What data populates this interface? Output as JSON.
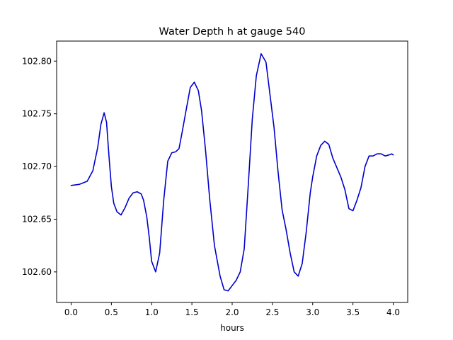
{
  "chart_data": {
    "type": "line",
    "title": "Water Depth h at gauge 540",
    "xlabel": "hours",
    "ylabel": "",
    "xlim": [
      -0.18,
      4.18
    ],
    "ylim": [
      102.571,
      102.819
    ],
    "xticks": [
      0.0,
      0.5,
      1.0,
      1.5,
      2.0,
      2.5,
      3.0,
      3.5,
      4.0
    ],
    "xtick_labels": [
      "0.0",
      "0.5",
      "1.0",
      "1.5",
      "2.0",
      "2.5",
      "3.0",
      "3.5",
      "4.0"
    ],
    "yticks": [
      102.6,
      102.65,
      102.7,
      102.75,
      102.8
    ],
    "ytick_labels": [
      "102.60",
      "102.65",
      "102.70",
      "102.75",
      "102.80"
    ],
    "grid": false,
    "series": [
      {
        "name": "",
        "color": "#0000cc",
        "x": [
          0.0,
          0.1,
          0.2,
          0.27,
          0.33,
          0.37,
          0.41,
          0.44,
          0.47,
          0.5,
          0.53,
          0.57,
          0.62,
          0.67,
          0.72,
          0.77,
          0.82,
          0.87,
          0.9,
          0.94,
          0.97,
          1.0,
          1.05,
          1.1,
          1.15,
          1.2,
          1.25,
          1.3,
          1.34,
          1.38,
          1.42,
          1.48,
          1.53,
          1.58,
          1.62,
          1.67,
          1.72,
          1.78,
          1.85,
          1.9,
          1.95,
          2.0,
          2.05,
          2.1,
          2.15,
          2.2,
          2.25,
          2.3,
          2.36,
          2.42,
          2.47,
          2.52,
          2.57,
          2.62,
          2.67,
          2.72,
          2.77,
          2.82,
          2.87,
          2.92,
          2.97,
          3.0,
          3.05,
          3.1,
          3.15,
          3.2,
          3.25,
          3.3,
          3.35,
          3.4,
          3.45,
          3.5,
          3.55,
          3.6,
          3.65,
          3.7,
          3.75,
          3.8,
          3.85,
          3.9,
          3.95,
          3.98,
          4.0
        ],
        "y": [
          102.682,
          102.683,
          102.686,
          102.696,
          102.718,
          102.74,
          102.751,
          102.742,
          102.71,
          102.681,
          102.665,
          102.657,
          102.654,
          102.661,
          102.67,
          102.675,
          102.676,
          102.674,
          102.668,
          102.652,
          102.633,
          102.61,
          102.6,
          102.618,
          102.668,
          102.705,
          102.713,
          102.714,
          102.717,
          102.733,
          102.75,
          102.775,
          102.78,
          102.772,
          102.753,
          102.715,
          102.67,
          102.625,
          102.596,
          102.583,
          102.582,
          102.587,
          102.592,
          102.6,
          102.622,
          102.682,
          102.745,
          102.786,
          102.807,
          102.799,
          102.768,
          102.737,
          102.695,
          102.659,
          102.64,
          102.618,
          102.6,
          102.596,
          102.608,
          102.638,
          102.675,
          102.69,
          102.71,
          102.72,
          102.724,
          102.721,
          102.708,
          102.699,
          102.69,
          102.678,
          102.66,
          102.658,
          102.668,
          102.68,
          102.7,
          102.71,
          102.71,
          102.712,
          102.712,
          102.71,
          102.711,
          102.712,
          102.711
        ]
      }
    ]
  }
}
